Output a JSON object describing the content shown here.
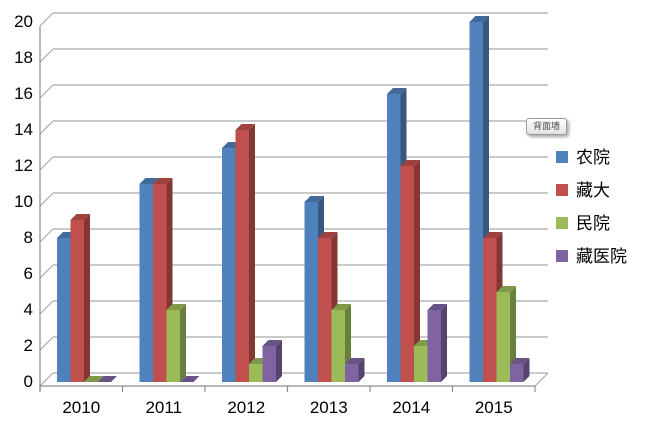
{
  "tooltip": {
    "label": "背面墙"
  },
  "chart_data": {
    "type": "bar",
    "style": "3d-clustered-column",
    "title": "",
    "xlabel": "",
    "ylabel": "",
    "categories": [
      "2010",
      "2011",
      "2012",
      "2013",
      "2014",
      "2015"
    ],
    "series": [
      {
        "name": "农院",
        "color": "#4F81BD",
        "values": [
          8,
          11,
          13,
          10,
          16,
          20
        ]
      },
      {
        "name": "藏大",
        "color": "#C0504D",
        "values": [
          9,
          11,
          14,
          8,
          12,
          8
        ]
      },
      {
        "name": "民院",
        "color": "#9BBB59",
        "values": [
          0,
          4,
          1,
          4,
          2,
          5
        ]
      },
      {
        "name": "藏医院",
        "color": "#8064A2",
        "values": [
          0,
          0,
          2,
          1,
          4,
          1
        ]
      }
    ],
    "ylim": [
      0,
      20
    ],
    "yticks": [
      0,
      2,
      4,
      6,
      8,
      10,
      12,
      14,
      16,
      18,
      20
    ],
    "grid": true,
    "legend_position": "right",
    "gridline_color": "#ABABAB",
    "axis_color": "#8C8C8C",
    "text_color": "#000000",
    "background_color": "#FFFFFF"
  }
}
